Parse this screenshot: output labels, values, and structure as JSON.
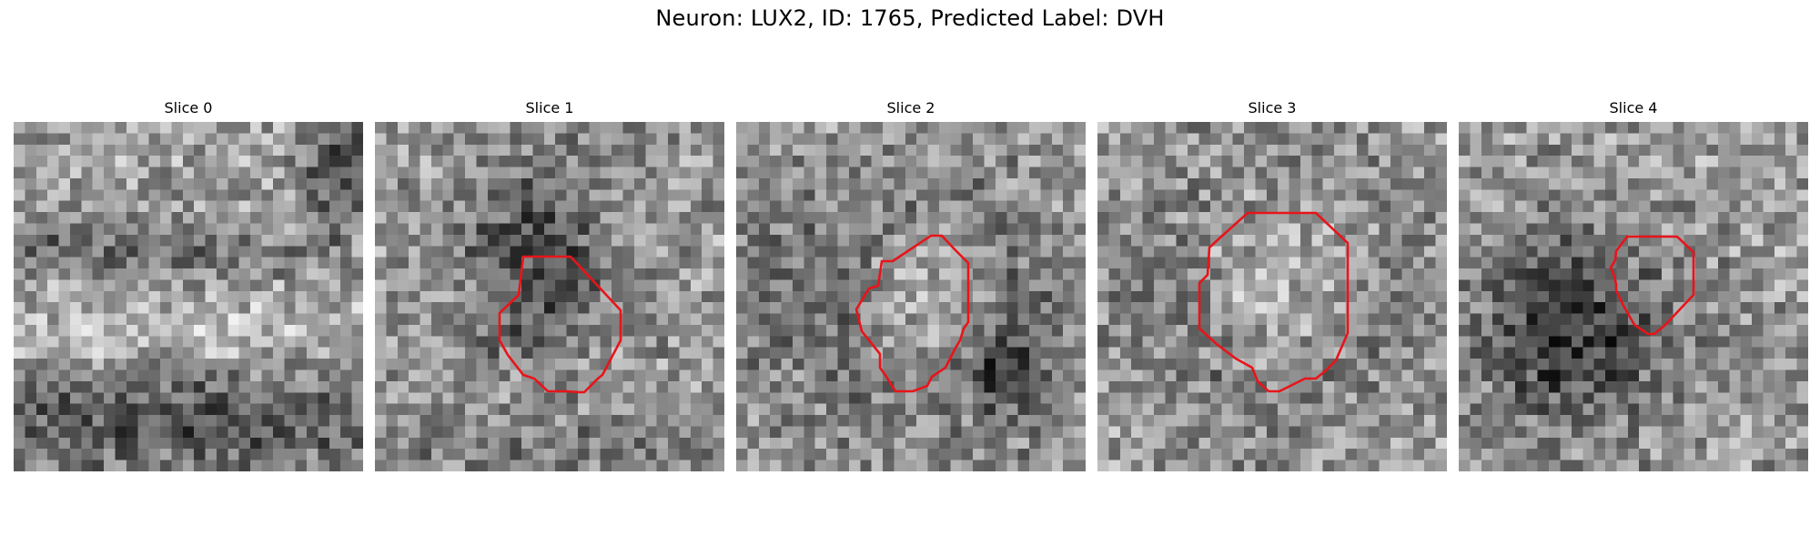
{
  "title": "Neuron: LUX2, ID: 1765, Predicted Label: DVH",
  "contour_color": "#e8141a",
  "slices": [
    {
      "title": "Slice 0",
      "has_contour": false
    },
    {
      "title": "Slice 1",
      "has_contour": true
    },
    {
      "title": "Slice 2",
      "has_contour": true
    },
    {
      "title": "Slice 3",
      "has_contour": true
    },
    {
      "title": "Slice 4",
      "has_contour": true
    }
  ],
  "colormap": "gray",
  "grid_size": 31
}
